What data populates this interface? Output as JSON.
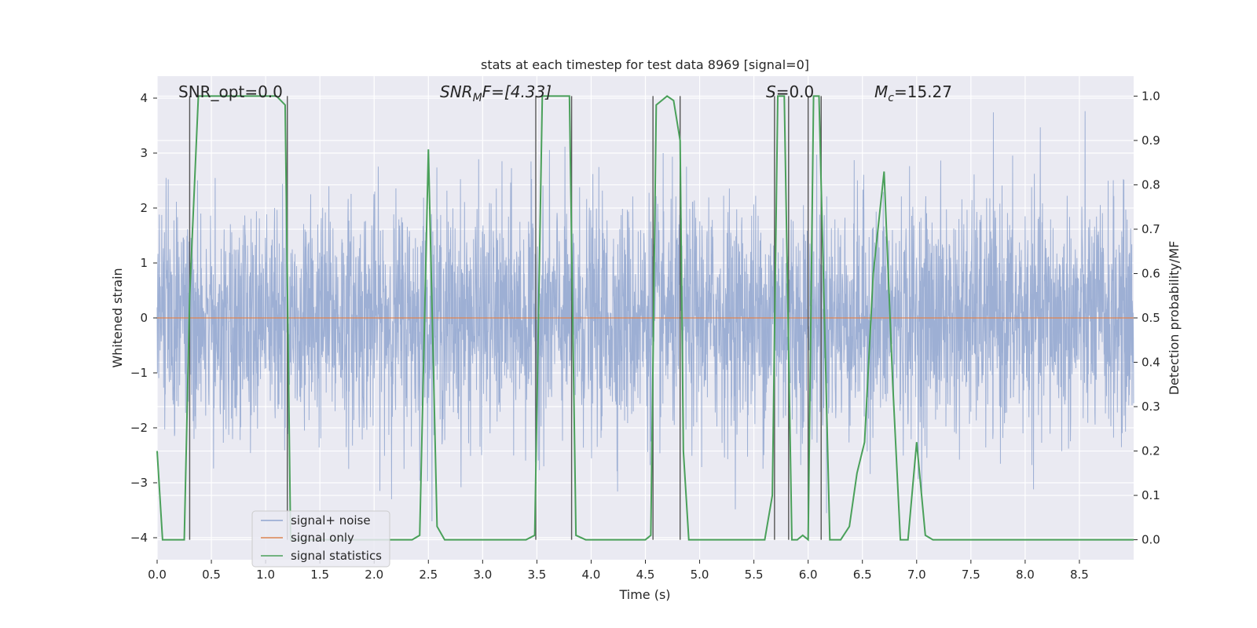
{
  "chart_data": {
    "type": "line",
    "title": "stats at each timestep for test data 8969 [signal=0]",
    "xlabel": "Time (s)",
    "ylabel_left": "Whitened strain",
    "ylabel_right": "Detection probability/MF",
    "xlim": [
      0,
      9.0
    ],
    "ylim_left": [
      -4.4,
      4.4
    ],
    "ylim_right": [
      -0.045,
      1.045
    ],
    "x_ticks": [
      "0.0",
      "0.5",
      "1.0",
      "1.5",
      "2.0",
      "2.5",
      "3.0",
      "3.5",
      "4.0",
      "4.5",
      "5.0",
      "5.5",
      "6.0",
      "6.5",
      "7.0",
      "7.5",
      "8.0",
      "8.5"
    ],
    "x_tick_values": [
      0,
      0.5,
      1,
      1.5,
      2,
      2.5,
      3,
      3.5,
      4,
      4.5,
      5,
      5.5,
      6,
      6.5,
      7,
      7.5,
      8,
      8.5
    ],
    "y_left_ticks": [
      "4",
      "3",
      "2",
      "1",
      "0",
      "−1",
      "−2",
      "−3",
      "−4"
    ],
    "y_left_tick_values": [
      4,
      3,
      2,
      1,
      0,
      -1,
      -2,
      -3,
      -4
    ],
    "y_right_ticks": [
      "1.0",
      "0.9",
      "0.8",
      "0.7",
      "0.6",
      "0.5",
      "0.4",
      "0.3",
      "0.2",
      "0.1",
      "0.0"
    ],
    "y_right_tick_values": [
      1.0,
      0.9,
      0.8,
      0.7,
      0.6,
      0.5,
      0.4,
      0.3,
      0.2,
      0.1,
      0.0
    ],
    "grid": true,
    "legend_placement": "lower-left",
    "annotations": {
      "snr_opt": "SNR_opt=0.0",
      "snr_mf_base": "SNR",
      "snr_mf_sub": "M",
      "snr_mf_tail": "F=[4.33]",
      "s_base": "S",
      "s_tail": "=0.0",
      "mc_base": "M",
      "mc_sub": "c",
      "mc_tail": "=15.27"
    },
    "series": [
      {
        "name": "signal+ noise",
        "color": "#8fa5cf",
        "axis": "left",
        "description_values": "gaussian noise roughly between -3.5 and 4.1"
      },
      {
        "name": "signal only",
        "color": "#dd8452",
        "axis": "left",
        "values_constant": 0
      },
      {
        "name": "signal statistics",
        "color": "#4aa05a",
        "axis": "right",
        "x": [
          0,
          0.05,
          0.2,
          0.25,
          0.3,
          0.38,
          1.1,
          1.18,
          1.23,
          1.3,
          2.35,
          2.42,
          2.5,
          2.58,
          2.65,
          3.4,
          3.48,
          3.55,
          3.8,
          3.86,
          3.95,
          4.5,
          4.55,
          4.6,
          4.7,
          4.76,
          4.82,
          4.85,
          4.9,
          5.6,
          5.67,
          5.72,
          5.78,
          5.85,
          5.9,
          5.95,
          6.0,
          6.05,
          6.1,
          6.2,
          6.3,
          6.38,
          6.45,
          6.52,
          6.6,
          6.7,
          6.78,
          6.85,
          6.92,
          7.0,
          7.08,
          7.15,
          9.0
        ],
        "y": [
          0.2,
          0.0,
          0.0,
          0.0,
          0.55,
          1.0,
          1.0,
          0.98,
          0.0,
          0.0,
          0.0,
          0.01,
          0.88,
          0.03,
          0.0,
          0.0,
          0.01,
          1.0,
          1.0,
          0.01,
          0.0,
          0.0,
          0.01,
          0.98,
          1.0,
          0.99,
          0.9,
          0.2,
          0.0,
          0.0,
          0.1,
          1.0,
          1.0,
          0.0,
          0.0,
          0.01,
          0.0,
          1.0,
          1.0,
          0.0,
          0.0,
          0.03,
          0.15,
          0.22,
          0.6,
          0.83,
          0.35,
          0.0,
          0.0,
          0.22,
          0.01,
          0.0,
          0.0
        ]
      }
    ],
    "detection_markers": {
      "color": "#555555",
      "x": [
        0.3,
        1.2,
        3.49,
        3.82,
        4.57,
        4.82,
        5.69,
        5.82,
        6.0,
        6.12
      ]
    }
  }
}
